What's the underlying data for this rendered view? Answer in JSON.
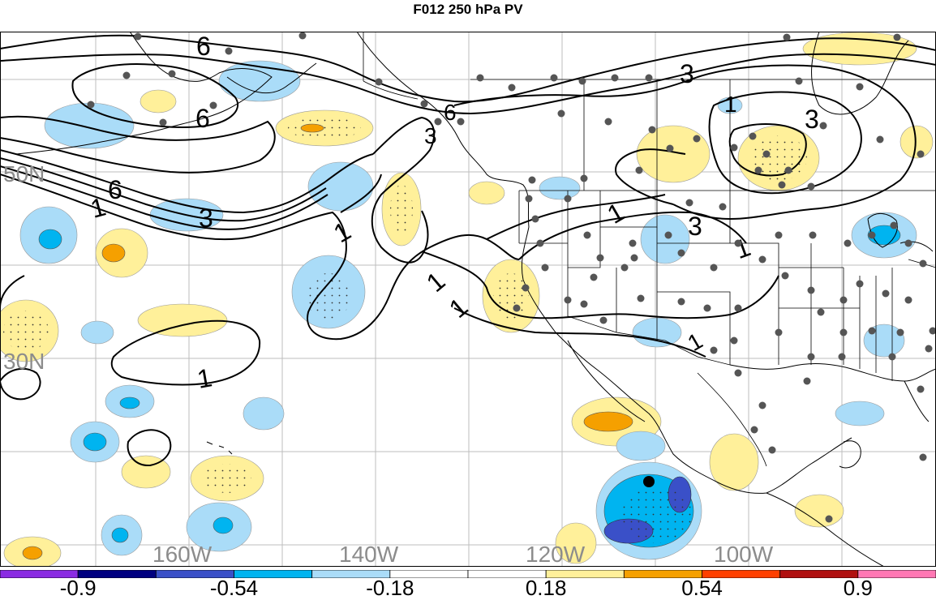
{
  "title": "F012 250 hPa PV",
  "axes": {
    "lat_labels": [
      "50N",
      "30N"
    ],
    "lon_labels": [
      "160W",
      "140W",
      "120W",
      "100W"
    ],
    "label_color": "#8c8c8c"
  },
  "contour_labels": [
    "6",
    "6",
    "6",
    "6",
    "3",
    "3",
    "3",
    "3",
    "3",
    "1",
    "1",
    "1",
    "1",
    "1",
    "1",
    "1",
    "1"
  ],
  "colorbar": {
    "colors": [
      "#8a2be2",
      "#000080",
      "#3a50c8",
      "#00b4f0",
      "#aadcf8",
      "#ffffff",
      "#ffffff",
      "#fff09a",
      "#f5a000",
      "#ff4000",
      "#b01010",
      "#ff78b4"
    ],
    "tick_labels": [
      "-0.9",
      "-0.54",
      "-0.18",
      "0.18",
      "0.54",
      "0.9"
    ]
  },
  "shade_colors": {
    "light_blue": "#aadcf8",
    "mid_blue": "#00b4f0",
    "dark_blue": "#3a50c8",
    "light_yellow": "#fff09a",
    "orange": "#f5a000",
    "red_orange": "#ff4000"
  }
}
